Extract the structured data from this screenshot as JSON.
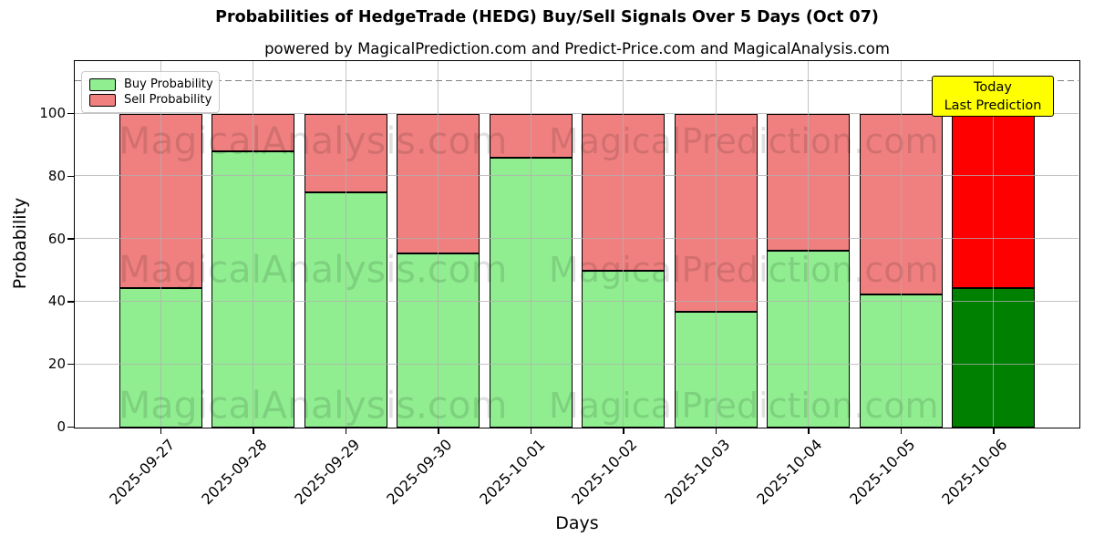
{
  "chart_data": {
    "type": "bar",
    "stacked": true,
    "title": "Probabilities of HedgeTrade (HEDG) Buy/Sell Signals Over 5 Days (Oct 07)",
    "subtitle": "powered by MagicalPrediction.com and Predict-Price.com and MagicalAnalysis.com",
    "xlabel": "Days",
    "ylabel": "Probability",
    "categories": [
      "2025-09-27",
      "2025-09-28",
      "2025-09-29",
      "2025-09-30",
      "2025-10-01",
      "2025-10-02",
      "2025-10-03",
      "2025-10-04",
      "2025-10-05",
      "2025-10-06"
    ],
    "series": [
      {
        "name": "Buy Probability",
        "color": "#90EE90",
        "values": [
          44.5,
          88,
          75,
          55.5,
          86,
          50,
          37,
          56.5,
          42.5,
          44.5
        ]
      },
      {
        "name": "Sell Probability",
        "color": "#F08080",
        "values": [
          55.5,
          12,
          25,
          44.5,
          14,
          50,
          63,
          43.5,
          57.5,
          55.5
        ]
      }
    ],
    "today_bar": {
      "index": 9,
      "buy_color": "#008000",
      "sell_color": "#FF0000"
    },
    "yticks": [
      0,
      20,
      40,
      60,
      80,
      100
    ],
    "ylim": [
      0,
      117
    ],
    "grid": true,
    "legend_position": "upper left",
    "bar_edge_color": "#000000",
    "dashed_line_y": 110.5,
    "dashed_line_color": "#808080",
    "annotation": {
      "lines": [
        "Today",
        "Last Prediction"
      ],
      "bg_color": "#FFFF00",
      "border_color": "#000000"
    },
    "watermarks": {
      "left": "MagicalAnalysis.com",
      "right": "MagicalPrediction.com"
    }
  }
}
